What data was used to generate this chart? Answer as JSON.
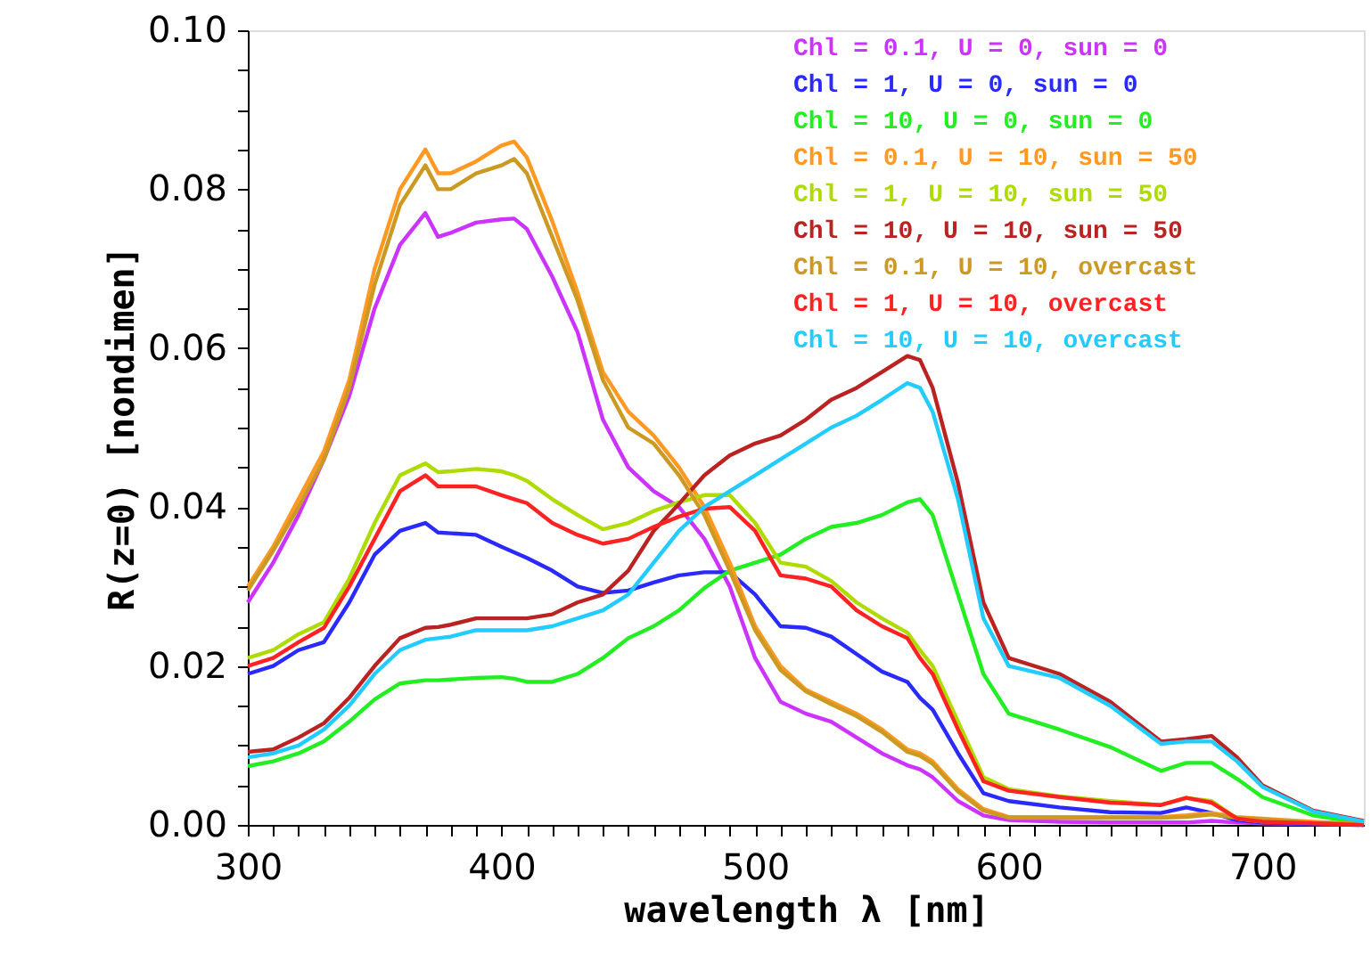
{
  "chart_data": {
    "type": "line",
    "xlabel": "wavelength λ [nm]",
    "ylabel": "R(z=0)  [nondimen]",
    "x": [
      300,
      310,
      320,
      330,
      340,
      350,
      360,
      370,
      375,
      380,
      390,
      400,
      405,
      410,
      420,
      430,
      440,
      450,
      460,
      470,
      480,
      490,
      500,
      510,
      520,
      530,
      540,
      550,
      560,
      565,
      570,
      580,
      590,
      600,
      620,
      640,
      660,
      670,
      680,
      690,
      700,
      720,
      740
    ],
    "xlim": [
      300,
      740
    ],
    "ylim": [
      0,
      0.1
    ],
    "xticks": [
      300,
      {
        "value": 310,
        "label": null
      },
      {
        "value": 320,
        "label": null
      },
      {
        "value": 330,
        "label": null
      },
      {
        "value": 340,
        "label": null
      },
      {
        "value": 350,
        "label": null
      },
      {
        "value": 360,
        "label": null
      },
      {
        "value": 370,
        "label": null
      },
      {
        "value": 380,
        "label": null
      },
      {
        "value": 390,
        "label": null
      },
      400,
      {
        "value": 410,
        "label": null
      },
      {
        "value": 420,
        "label": null
      },
      {
        "value": 430,
        "label": null
      },
      {
        "value": 440,
        "label": null
      },
      {
        "value": 450,
        "label": null
      },
      {
        "value": 460,
        "label": null
      },
      {
        "value": 470,
        "label": null
      },
      {
        "value": 480,
        "label": null
      },
      {
        "value": 490,
        "label": null
      },
      500,
      {
        "value": 510,
        "label": null
      },
      {
        "value": 520,
        "label": null
      },
      {
        "value": 530,
        "label": null
      },
      {
        "value": 540,
        "label": null
      },
      {
        "value": 550,
        "label": null
      },
      {
        "value": 560,
        "label": null
      },
      {
        "value": 570,
        "label": null
      },
      {
        "value": 580,
        "label": null
      },
      {
        "value": 590,
        "label": null
      },
      600,
      {
        "value": 610,
        "label": null
      },
      {
        "value": 620,
        "label": null
      },
      {
        "value": 630,
        "label": null
      },
      {
        "value": 640,
        "label": null
      },
      {
        "value": 650,
        "label": null
      },
      {
        "value": 660,
        "label": null
      },
      {
        "value": 670,
        "label": null
      },
      {
        "value": 680,
        "label": null
      },
      {
        "value": 690,
        "label": null
      },
      700,
      {
        "value": 710,
        "label": null
      },
      {
        "value": 720,
        "label": null
      },
      {
        "value": 730,
        "label": null
      }
    ],
    "yticks": [
      {
        "value": 0,
        "label": "0.00"
      },
      {
        "value": 0.005,
        "label": null
      },
      {
        "value": 0.01,
        "label": null
      },
      {
        "value": 0.015,
        "label": null
      },
      {
        "value": 0.02,
        "label": "0.02"
      },
      {
        "value": 0.025,
        "label": null
      },
      {
        "value": 0.03,
        "label": null
      },
      {
        "value": 0.035,
        "label": null
      },
      {
        "value": 0.04,
        "label": "0.04"
      },
      {
        "value": 0.045,
        "label": null
      },
      {
        "value": 0.05,
        "label": null
      },
      {
        "value": 0.055,
        "label": null
      },
      {
        "value": 0.06,
        "label": "0.06"
      },
      {
        "value": 0.065,
        "label": null
      },
      {
        "value": 0.07,
        "label": null
      },
      {
        "value": 0.075,
        "label": null
      },
      {
        "value": 0.08,
        "label": "0.08"
      },
      {
        "value": 0.085,
        "label": null
      },
      {
        "value": 0.09,
        "label": null
      },
      {
        "value": 0.095,
        "label": null
      },
      {
        "value": 0.1,
        "label": "0.10"
      }
    ],
    "grid": false,
    "legend": "top right",
    "marker": "none",
    "line_style": "solid",
    "series": [
      {
        "name": "Chl = 0.1, U = 0, sun = 0",
        "color": "#cc33ff",
        "values": [
          0.028,
          0.033,
          0.039,
          0.046,
          0.054,
          0.065,
          0.073,
          0.077,
          0.074,
          0.0745,
          0.0758,
          0.0762,
          0.0763,
          0.075,
          0.069,
          0.062,
          0.051,
          0.045,
          0.042,
          0.04,
          0.036,
          0.03,
          0.021,
          0.0155,
          0.014,
          0.013,
          0.011,
          0.009,
          0.0075,
          0.007,
          0.006,
          0.003,
          0.0012,
          0.0006,
          0.0004,
          0.0003,
          0.0003,
          0.0003,
          0.0005,
          0.0003,
          0.0002,
          0.0001,
          0
        ]
      },
      {
        "name": "Chl = 1, U = 0, sun = 0",
        "color": "#2a2aff",
        "values": [
          0.019,
          0.02,
          0.022,
          0.023,
          0.028,
          0.034,
          0.037,
          0.038,
          0.0368,
          0.0367,
          0.0365,
          0.035,
          0.0343,
          0.0336,
          0.032,
          0.03,
          0.0292,
          0.0295,
          0.0305,
          0.0314,
          0.0318,
          0.0318,
          0.029,
          0.025,
          0.0248,
          0.0237,
          0.0215,
          0.0193,
          0.018,
          0.016,
          0.0145,
          0.009,
          0.004,
          0.003,
          0.0022,
          0.0016,
          0.0015,
          0.0022,
          0.0015,
          0.0006,
          0.0003,
          0.0001,
          0
        ]
      },
      {
        "name": "Chl = 10, U = 0, sun = 0",
        "color": "#22ee22",
        "values": [
          0.0074,
          0.008,
          0.009,
          0.0105,
          0.013,
          0.0158,
          0.0178,
          0.0182,
          0.0182,
          0.0183,
          0.0185,
          0.0186,
          0.0184,
          0.018,
          0.018,
          0.019,
          0.021,
          0.0235,
          0.025,
          0.027,
          0.0298,
          0.032,
          0.033,
          0.034,
          0.036,
          0.0375,
          0.038,
          0.039,
          0.0406,
          0.041,
          0.039,
          0.029,
          0.019,
          0.014,
          0.012,
          0.0098,
          0.0068,
          0.0078,
          0.0078,
          0.0058,
          0.0035,
          0.0012,
          0.0002
        ]
      },
      {
        "name": "Chl = 0.1, U = 10, sun = 50",
        "color": "#ff9922",
        "values": [
          0.03,
          0.035,
          0.041,
          0.047,
          0.056,
          0.07,
          0.08,
          0.085,
          0.082,
          0.082,
          0.0835,
          0.0855,
          0.086,
          0.084,
          0.076,
          0.067,
          0.057,
          0.052,
          0.049,
          0.045,
          0.04,
          0.033,
          0.025,
          0.02,
          0.017,
          0.0155,
          0.014,
          0.012,
          0.0095,
          0.009,
          0.008,
          0.0045,
          0.002,
          0.001,
          0.001,
          0.001,
          0.001,
          0.0012,
          0.0015,
          0.001,
          0.0008,
          0.0004,
          0.0001
        ]
      },
      {
        "name": "Chl = 1, U = 10, sun = 50",
        "color": "#aedc00",
        "values": [
          0.021,
          0.022,
          0.024,
          0.0255,
          0.031,
          0.038,
          0.044,
          0.0455,
          0.0444,
          0.0445,
          0.0448,
          0.0445,
          0.044,
          0.0433,
          0.041,
          0.039,
          0.0372,
          0.038,
          0.0395,
          0.0406,
          0.0415,
          0.0415,
          0.038,
          0.033,
          0.0325,
          0.0307,
          0.028,
          0.026,
          0.0242,
          0.022,
          0.02,
          0.013,
          0.006,
          0.0045,
          0.0036,
          0.003,
          0.0025,
          0.0034,
          0.003,
          0.0008,
          0.0004,
          null,
          null
        ]
      },
      {
        "name": "Chl = 10, U = 10, sun = 50",
        "color": "#bb2222",
        "values": [
          0.0092,
          0.0095,
          0.011,
          0.0128,
          0.016,
          0.02,
          0.0235,
          0.0248,
          0.0249,
          0.0252,
          0.026,
          0.026,
          0.026,
          0.026,
          0.0265,
          0.028,
          0.029,
          0.032,
          0.037,
          0.0404,
          0.044,
          0.0465,
          0.048,
          0.049,
          0.051,
          0.0535,
          0.055,
          0.057,
          0.059,
          0.0585,
          0.055,
          0.043,
          0.028,
          0.021,
          0.019,
          0.0155,
          0.0105,
          0.0108,
          0.0112,
          0.0085,
          0.005,
          0.0018,
          0.0005
        ]
      },
      {
        "name": "Chl = 0.1, U = 10, overcast",
        "color": "#cc9922",
        "values": [
          0.0295,
          0.0345,
          0.04,
          0.046,
          0.055,
          0.068,
          0.078,
          0.083,
          0.08,
          0.08,
          0.082,
          0.083,
          0.0838,
          0.082,
          0.074,
          0.066,
          0.056,
          0.05,
          0.048,
          0.044,
          0.039,
          0.032,
          0.0245,
          0.0195,
          0.0168,
          0.0152,
          0.0137,
          0.0117,
          0.0092,
          0.0087,
          0.0077,
          0.0042,
          0.0018,
          0.0009,
          0.0009,
          0.0009,
          0.0009,
          0.001,
          0.0013,
          0.0009,
          0.0007,
          0.0003,
          0.0001
        ]
      },
      {
        "name": "Chl = 1, U = 10, overcast",
        "color": "#ff2222",
        "values": [
          0.02,
          0.021,
          0.023,
          0.0248,
          0.03,
          0.036,
          0.042,
          0.044,
          0.0426,
          0.0426,
          0.0426,
          0.0415,
          0.041,
          0.0405,
          0.038,
          0.0365,
          0.0354,
          0.036,
          0.0375,
          0.0388,
          0.0398,
          0.04,
          0.037,
          0.0314,
          0.031,
          0.03,
          0.027,
          0.025,
          0.0235,
          0.021,
          0.019,
          0.012,
          0.0055,
          0.0043,
          0.0035,
          0.0028,
          0.0025,
          0.0034,
          0.0028,
          0.0008,
          0.0004,
          0.0002,
          0
        ]
      },
      {
        "name": "Chl = 10, U = 10, overcast",
        "color": "#22ccff",
        "values": [
          0.0085,
          0.009,
          0.01,
          0.012,
          0.015,
          0.019,
          0.022,
          0.0233,
          0.0235,
          0.0237,
          0.0245,
          0.0245,
          0.0245,
          0.0245,
          0.025,
          0.026,
          0.027,
          0.029,
          0.033,
          0.037,
          0.04,
          0.042,
          0.044,
          0.046,
          0.048,
          0.05,
          0.0515,
          0.0535,
          0.0556,
          0.055,
          0.052,
          0.041,
          0.026,
          0.02,
          0.0185,
          0.015,
          0.0102,
          0.0105,
          0.0105,
          0.008,
          0.0048,
          0.0017,
          0.0004
        ]
      }
    ]
  }
}
